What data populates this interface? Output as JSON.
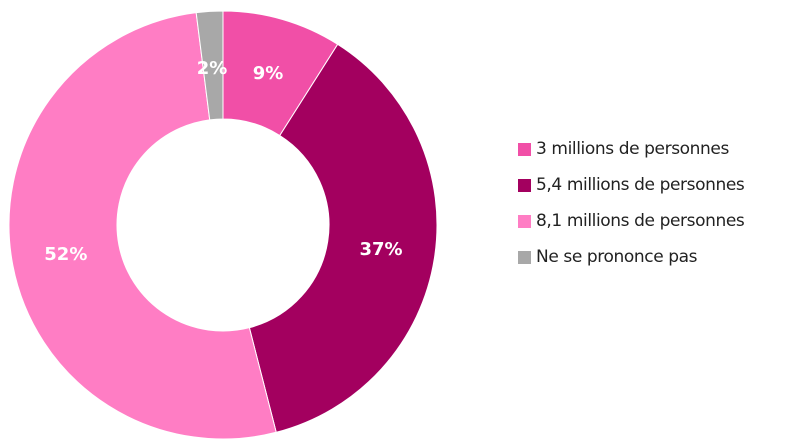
{
  "chart_data": {
    "type": "pie",
    "donut": true,
    "title": "",
    "categories": [
      "3 millions de personnes",
      "5,4 millions de personnes",
      "8,1 millions de personnes",
      "Ne se prononce pas"
    ],
    "values": [
      9,
      37,
      52,
      2
    ],
    "value_labels": [
      "9%",
      "37%",
      "52%",
      "2%"
    ],
    "colors": [
      "#f14fa7",
      "#a3005f",
      "#ff7dc4",
      "#a8a8a8"
    ],
    "legend_position": "right"
  }
}
